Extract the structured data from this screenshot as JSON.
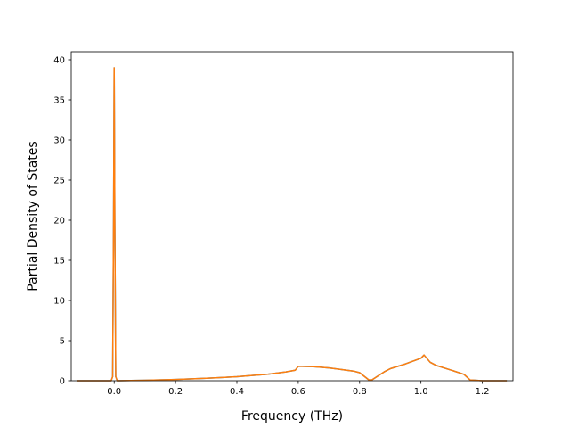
{
  "chart_data": {
    "type": "line",
    "title": "",
    "xlabel": "Frequency (THz)",
    "ylabel": "Partial Density of States",
    "xlim": [
      -0.14,
      1.3
    ],
    "ylim": [
      0,
      41
    ],
    "xticks": [
      0.0,
      0.2,
      0.4,
      0.6,
      0.8,
      1.0,
      1.2
    ],
    "xtick_labels": [
      "0.0",
      "0.2",
      "0.4",
      "0.6",
      "0.8",
      "1.0",
      "1.2"
    ],
    "yticks": [
      0,
      5,
      10,
      15,
      20,
      25,
      30,
      35,
      40
    ],
    "ytick_labels": [
      "0",
      "5",
      "10",
      "15",
      "20",
      "25",
      "30",
      "35",
      "40"
    ],
    "grid": false,
    "legend": "none",
    "series": [
      {
        "color": "#1f77b4",
        "x": [
          -0.12,
          -0.01,
          -0.005,
          -0.002,
          0.0,
          0.002,
          0.005,
          0.01,
          0.1,
          0.2,
          0.3,
          0.4,
          0.5,
          0.56,
          0.59,
          0.6,
          0.65,
          0.7,
          0.75,
          0.78,
          0.8,
          0.82,
          0.83,
          0.84,
          0.86,
          0.88,
          0.9,
          0.95,
          1.0,
          1.01,
          1.03,
          1.05,
          1.1,
          1.14,
          1.16,
          1.2,
          1.28
        ],
        "y": [
          0,
          0,
          0.5,
          20,
          39,
          20,
          0.5,
          0,
          0.05,
          0.15,
          0.3,
          0.5,
          0.8,
          1.1,
          1.3,
          1.8,
          1.75,
          1.6,
          1.35,
          1.2,
          1.0,
          0.4,
          0.1,
          0.1,
          0.6,
          1.1,
          1.5,
          2.1,
          2.8,
          3.2,
          2.3,
          1.9,
          1.3,
          0.8,
          0.1,
          0.0,
          0.0
        ]
      },
      {
        "color": "#ff7f0e",
        "x": [
          -0.12,
          -0.01,
          -0.005,
          -0.002,
          0.0,
          0.002,
          0.005,
          0.01,
          0.1,
          0.2,
          0.3,
          0.4,
          0.5,
          0.56,
          0.59,
          0.6,
          0.65,
          0.7,
          0.75,
          0.78,
          0.8,
          0.82,
          0.83,
          0.84,
          0.86,
          0.88,
          0.9,
          0.95,
          1.0,
          1.01,
          1.03,
          1.05,
          1.1,
          1.14,
          1.16,
          1.2,
          1.28
        ],
        "y": [
          0,
          0,
          0.5,
          20,
          39,
          20,
          0.5,
          0,
          0.05,
          0.15,
          0.3,
          0.5,
          0.8,
          1.1,
          1.3,
          1.8,
          1.75,
          1.6,
          1.35,
          1.2,
          1.0,
          0.4,
          0.1,
          0.1,
          0.6,
          1.1,
          1.5,
          2.1,
          2.8,
          3.2,
          2.3,
          1.9,
          1.3,
          0.8,
          0.1,
          0.0,
          0.0
        ]
      }
    ]
  }
}
